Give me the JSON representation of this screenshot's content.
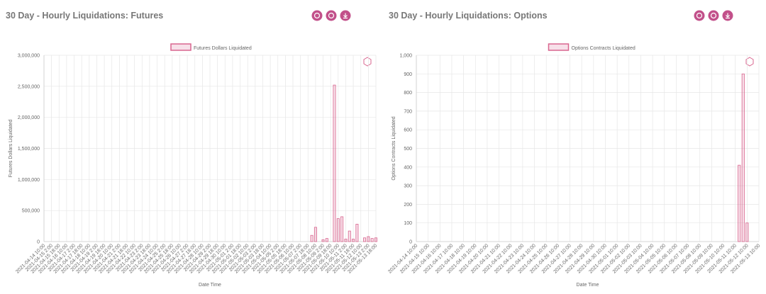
{
  "chart_data": [
    {
      "type": "bar",
      "title": "30 Day - Hourly Liquidations: Futures",
      "legend": "Futures Dollars Liquidated",
      "ylabel": "Futures Dollars Liquidated",
      "xlabel": "Date Time",
      "color": "#d9668f",
      "grid": true,
      "ylim": [
        0,
        3000000
      ],
      "yticks": [
        0,
        {
          "value": 500000,
          "label": "500,000"
        },
        {
          "value": 1000000,
          "label": "1,000,000"
        },
        {
          "value": 1500000,
          "label": "1,500,000"
        },
        {
          "value": 2000000,
          "label": "2,000,000"
        },
        {
          "value": 2500000,
          "label": "2,500,000"
        },
        {
          "value": 3000000,
          "label": "3,000,000"
        }
      ],
      "categories": [
        "2021-04-14 10:00",
        null,
        "2021-04-15 2:00",
        null,
        "2021-04-15 18:00",
        null,
        "2021-04-16 10:00",
        null,
        "2021-04-17 2:00",
        null,
        "2021-04-17 18:00",
        null,
        "2021-04-18 10:00",
        null,
        "2021-04-19 2:00",
        null,
        "2021-04-19 18:00",
        null,
        "2021-04-20 10:00",
        null,
        "2021-04-21 2:00",
        null,
        "2021-04-21 18:00",
        null,
        "2021-04-22 10:00",
        null,
        "2021-04-23 2:00",
        null,
        "2021-04-23 18:00",
        null,
        "2021-04-24 10:00",
        null,
        "2021-04-25 2:00",
        null,
        "2021-04-25 18:00",
        null,
        "2021-04-26 10:00",
        null,
        "2021-04-27 2:00",
        null,
        "2021-04-27 18:00",
        null,
        "2021-04-28 10:00",
        null,
        "2021-04-29 2:00",
        null,
        "2021-04-29 18:00",
        null,
        "2021-04-30 10:00",
        null,
        "2021-05-01 2:00",
        null,
        "2021-05-01 18:00",
        null,
        "2021-05-02 10:00",
        null,
        "2021-05-03 2:00",
        null,
        "2021-05-03 18:00",
        null,
        "2021-05-04 10:00",
        null,
        "2021-05-05 2:00",
        null,
        "2021-05-05 18:00",
        null,
        "2021-05-06 10:00",
        null,
        "2021-05-07 2:00",
        null,
        "2021-05-07 18:00",
        null,
        "2021-05-08 10:00",
        null,
        "2021-05-09 2:00",
        null,
        "2021-05-09 18:00",
        null,
        "2021-05-10 10:00",
        null,
        "2021-05-11 2:00",
        null,
        "2021-05-11 18:00",
        null,
        "2021-05-12 10:00",
        null,
        "2021-05-13 2:00",
        null,
        "2021-05-13 18:00"
      ],
      "values": [
        0,
        0,
        0,
        0,
        0,
        0,
        0,
        0,
        0,
        0,
        0,
        0,
        0,
        0,
        0,
        0,
        0,
        0,
        0,
        0,
        0,
        0,
        0,
        0,
        0,
        0,
        0,
        0,
        0,
        0,
        0,
        0,
        0,
        0,
        0,
        0,
        0,
        0,
        0,
        0,
        0,
        0,
        0,
        0,
        0,
        0,
        0,
        0,
        0,
        0,
        0,
        0,
        0,
        0,
        0,
        0,
        0,
        0,
        0,
        0,
        0,
        0,
        0,
        0,
        0,
        0,
        0,
        0,
        0,
        0,
        0,
        100000,
        230000,
        0,
        30000,
        50000,
        0,
        2520000,
        370000,
        400000,
        40000,
        170000,
        40000,
        280000,
        0,
        60000,
        80000,
        50000,
        60000
      ]
    },
    {
      "type": "bar",
      "title": "30 Day - Hourly Liquidations: Options",
      "legend": "Options Contracts Liquidated",
      "ylabel": "Options Contracts Liquidated",
      "xlabel": "Date Time",
      "color": "#d9668f",
      "grid": true,
      "ylim": [
        0,
        1000
      ],
      "yticks": [
        0,
        100,
        200,
        300,
        400,
        500,
        600,
        700,
        800,
        900,
        {
          "value": 1000,
          "label": "1,000"
        }
      ],
      "categories": [
        "2021-04-14 10:00",
        null,
        null,
        "2021-04-15 10:00",
        null,
        null,
        "2021-04-16 10:00",
        null,
        null,
        "2021-04-17 10:00",
        null,
        null,
        "2021-04-18 10:00",
        null,
        null,
        "2021-04-19 10:00",
        null,
        null,
        "2021-04-20 10:00",
        null,
        null,
        "2021-04-21 10:00",
        null,
        null,
        "2021-04-22 10:00",
        null,
        null,
        "2021-04-23 10:00",
        null,
        null,
        "2021-04-24 10:00",
        null,
        null,
        "2021-04-25 10:00",
        null,
        null,
        "2021-04-26 10:00",
        null,
        null,
        "2021-04-27 10:00",
        null,
        null,
        "2021-04-28 10:00",
        null,
        null,
        "2021-04-29 10:00",
        null,
        null,
        "2021-04-30 10:00",
        null,
        null,
        "2021-05-01 10:00",
        null,
        null,
        "2021-05-02 10:00",
        null,
        null,
        "2021-05-03 10:00",
        null,
        null,
        "2021-05-04 10:00",
        null,
        null,
        "2021-05-05 10:00",
        null,
        null,
        "2021-05-06 10:00",
        null,
        null,
        "2021-05-07 10:00",
        null,
        null,
        "2021-05-08 10:00",
        null,
        null,
        "2021-05-09 10:00",
        null,
        null,
        "2021-05-10 10:00",
        null,
        null,
        "2021-05-11 10:00",
        null,
        null,
        "2021-05-12 10:00",
        null,
        null,
        "2021-05-13 10:00"
      ],
      "values": [
        0,
        0,
        0,
        0,
        0,
        0,
        0,
        0,
        0,
        0,
        0,
        0,
        0,
        0,
        0,
        0,
        0,
        0,
        0,
        0,
        0,
        0,
        0,
        0,
        0,
        0,
        0,
        0,
        0,
        0,
        0,
        0,
        0,
        0,
        0,
        0,
        0,
        0,
        0,
        0,
        0,
        0,
        0,
        0,
        0,
        0,
        0,
        0,
        0,
        0,
        0,
        0,
        0,
        0,
        0,
        0,
        0,
        0,
        0,
        0,
        0,
        0,
        0,
        0,
        0,
        0,
        0,
        0,
        0,
        0,
        0,
        0,
        0,
        0,
        0,
        0,
        0,
        0,
        0,
        0,
        0,
        0,
        410,
        900,
        100,
        0,
        0,
        0
      ]
    }
  ]
}
